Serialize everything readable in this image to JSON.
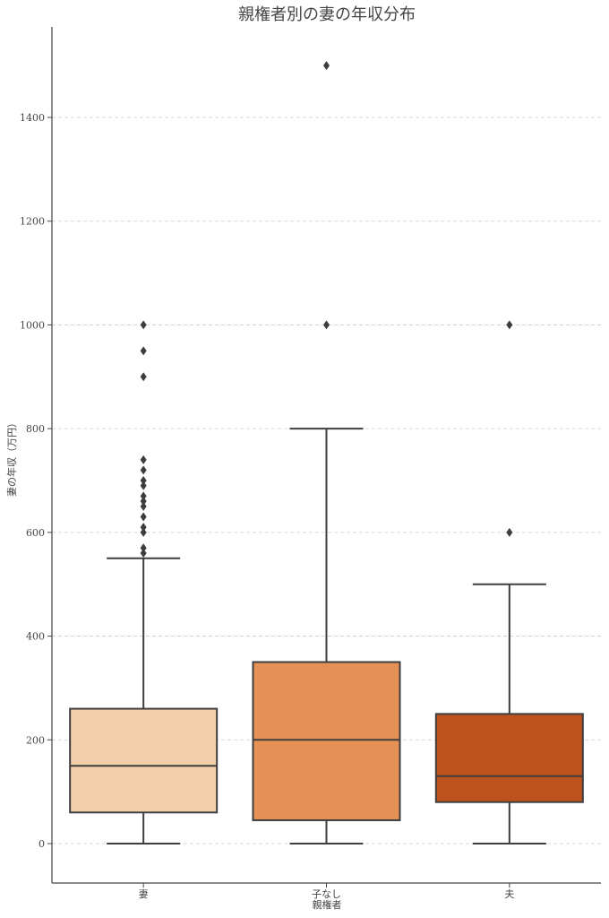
{
  "chart_data": {
    "type": "box",
    "title": "親権者別の妻の年収分布",
    "xlabel": "親権者",
    "ylabel": "妻の年収（万円）",
    "ylim": [
      -75,
      1580
    ],
    "yticks": [
      0,
      200,
      400,
      600,
      800,
      1000,
      1200,
      1400
    ],
    "grid": "y-dashed",
    "categories": [
      "妻",
      "子なし",
      "夫"
    ],
    "colors": [
      "#f2ceaa",
      "#e59055",
      "#bd521d"
    ],
    "boxes": [
      {
        "category": "妻",
        "whisker_low": 0,
        "q1": 60,
        "median": 150,
        "q3": 260,
        "whisker_high": 550,
        "outliers": [
          560,
          570,
          600,
          610,
          630,
          650,
          660,
          670,
          690,
          700,
          720,
          740,
          900,
          950,
          1000
        ]
      },
      {
        "category": "子なし",
        "whisker_low": 0,
        "q1": 45,
        "median": 200,
        "q3": 350,
        "whisker_high": 800,
        "outliers": [
          1000,
          1500
        ]
      },
      {
        "category": "夫",
        "whisker_low": 0,
        "q1": 80,
        "median": 130,
        "q3": 250,
        "whisker_high": 500,
        "outliers": [
          600,
          1000
        ]
      }
    ]
  }
}
